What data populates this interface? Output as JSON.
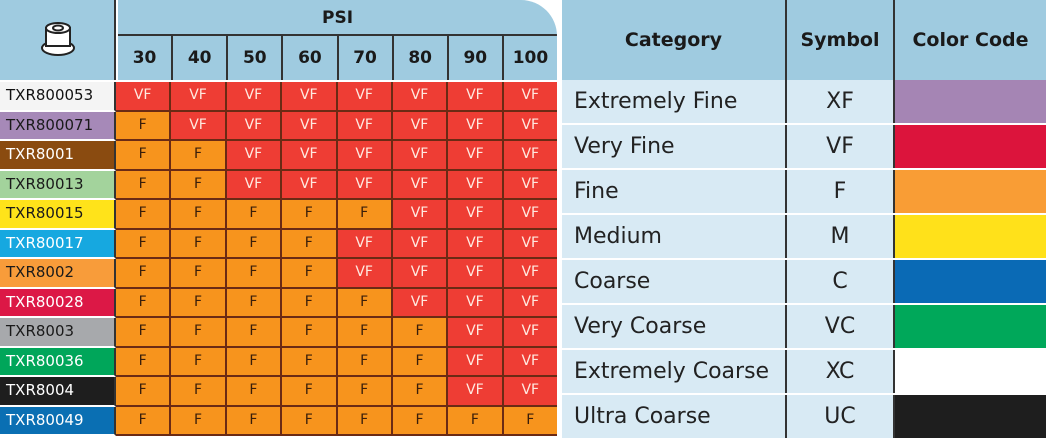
{
  "nozzle_table": {
    "header": "PSI",
    "icon": "nozzle-icon",
    "pressures": [
      "30",
      "40",
      "50",
      "60",
      "70",
      "80",
      "90",
      "100"
    ],
    "rows": [
      {
        "model": "TXR800053",
        "bg": "#f4f4f4",
        "fg": "#111",
        "values": [
          "VF",
          "VF",
          "VF",
          "VF",
          "VF",
          "VF",
          "VF",
          "VF"
        ]
      },
      {
        "model": "TXR800071",
        "bg": "#a689b8",
        "fg": "#1a1a1a",
        "values": [
          "F",
          "VF",
          "VF",
          "VF",
          "VF",
          "VF",
          "VF",
          "VF"
        ]
      },
      {
        "model": "TXR8001",
        "bg": "#8a4b10",
        "fg": "#fff",
        "values": [
          "F",
          "F",
          "VF",
          "VF",
          "VF",
          "VF",
          "VF",
          "VF"
        ]
      },
      {
        "model": "TXR80013",
        "bg": "#a3d39c",
        "fg": "#1a1a1a",
        "values": [
          "F",
          "F",
          "VF",
          "VF",
          "VF",
          "VF",
          "VF",
          "VF"
        ]
      },
      {
        "model": "TXR80015",
        "bg": "#ffe31a",
        "fg": "#1a1a1a",
        "values": [
          "F",
          "F",
          "F",
          "F",
          "F",
          "VF",
          "VF",
          "VF"
        ]
      },
      {
        "model": "TXR80017",
        "bg": "#16a8e0",
        "fg": "#fff",
        "values": [
          "F",
          "F",
          "F",
          "F",
          "VF",
          "VF",
          "VF",
          "VF"
        ]
      },
      {
        "model": "TXR8002",
        "bg": "#f89c3a",
        "fg": "#1a1a1a",
        "values": [
          "F",
          "F",
          "F",
          "F",
          "VF",
          "VF",
          "VF",
          "VF"
        ]
      },
      {
        "model": "TXR80028",
        "bg": "#dc1846",
        "fg": "#fff",
        "values": [
          "F",
          "F",
          "F",
          "F",
          "F",
          "VF",
          "VF",
          "VF"
        ]
      },
      {
        "model": "TXR8003",
        "bg": "#a7a9ac",
        "fg": "#1a1a1a",
        "values": [
          "F",
          "F",
          "F",
          "F",
          "F",
          "F",
          "VF",
          "VF"
        ]
      },
      {
        "model": "TXR80036",
        "bg": "#00a65a",
        "fg": "#fff",
        "values": [
          "F",
          "F",
          "F",
          "F",
          "F",
          "F",
          "VF",
          "VF"
        ]
      },
      {
        "model": "TXR8004",
        "bg": "#1e1e1e",
        "fg": "#fff",
        "values": [
          "F",
          "F",
          "F",
          "F",
          "F",
          "F",
          "VF",
          "VF"
        ]
      },
      {
        "model": "TXR80049",
        "bg": "#0a6fb3",
        "fg": "#fff",
        "values": [
          "F",
          "F",
          "F",
          "F",
          "F",
          "F",
          "F",
          "F"
        ]
      }
    ]
  },
  "legend": {
    "headers": [
      "Category",
      "Symbol",
      "Color Code"
    ],
    "rows": [
      {
        "category": "Extremely Fine",
        "symbol": "XF",
        "color": "#a585b4"
      },
      {
        "category": "Very Fine",
        "symbol": "VF",
        "color": "#dc143c"
      },
      {
        "category": "Fine",
        "symbol": "F",
        "color": "#f99d35"
      },
      {
        "category": "Medium",
        "symbol": "M",
        "color": "#ffe11a"
      },
      {
        "category": "Coarse",
        "symbol": "C",
        "color": "#0a6ab5"
      },
      {
        "category": "Very Coarse",
        "symbol": "VC",
        "color": "#00a85a"
      },
      {
        "category": "Extremely Coarse",
        "symbol": "XC",
        "color": "#ffffff"
      },
      {
        "category": "Ultra Coarse",
        "symbol": "UC",
        "color": "#1e1e1e"
      }
    ]
  }
}
